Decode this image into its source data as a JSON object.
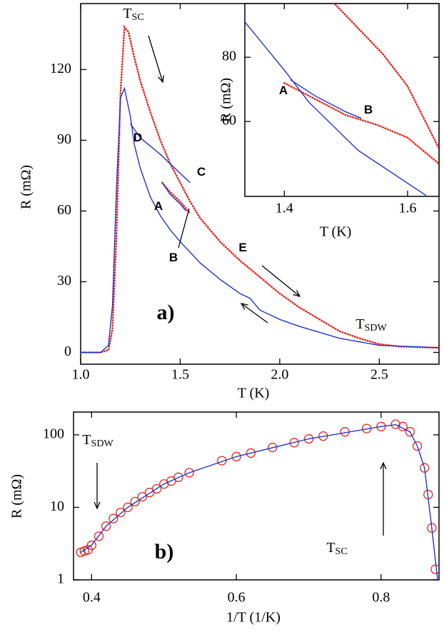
{
  "chart_data": [
    {
      "type": "line",
      "xlabel": "T (K)",
      "ylabel": "R (mΩ)",
      "xlim": [
        1.0,
        2.8
      ],
      "ylim": [
        -5,
        148
      ],
      "xticks": [
        {
          "value": 1.0,
          "label": "1.0"
        },
        1.5,
        {
          "value": 2.0,
          "label": "2.0"
        },
        2.5
      ],
      "yticks": [
        0,
        30,
        60,
        90,
        120
      ],
      "series": [
        {
          "color": "#e3241b",
          "style": "dots",
          "x": [
            1.0,
            1.1,
            1.14,
            1.16,
            1.18,
            1.2,
            1.22,
            1.24,
            1.27,
            1.3,
            1.35,
            1.4,
            1.45,
            1.5,
            1.55,
            1.6,
            1.7,
            1.8,
            1.9,
            2.0,
            2.1,
            2.2,
            2.3,
            2.4,
            2.5,
            2.6,
            2.7,
            2.8
          ],
          "values": [
            0,
            0,
            1,
            10,
            50,
            110,
            138,
            136,
            125,
            115,
            102,
            90,
            80,
            72,
            64,
            57,
            47,
            39,
            32,
            25,
            19,
            14,
            9,
            6,
            3.5,
            2.5,
            2.2,
            2
          ]
        },
        {
          "color": "#e3241b",
          "style": "dots",
          "x": [
            1.41,
            1.45,
            1.5,
            1.55
          ],
          "values": [
            72,
            68,
            64,
            59
          ]
        },
        {
          "color": "#2233cc",
          "style": "line",
          "x": [
            1.0,
            1.1,
            1.14,
            1.16,
            1.18,
            1.2,
            1.22,
            1.25,
            1.27,
            1.3,
            1.35,
            1.4,
            1.45,
            1.5,
            1.6,
            1.7,
            1.8,
            1.85,
            1.9,
            2.0,
            2.1,
            2.3,
            2.5,
            2.8
          ],
          "values": [
            0,
            0,
            3,
            20,
            70,
            108,
            112,
            100,
            88,
            78,
            66,
            58,
            52,
            47,
            38,
            31,
            25,
            23,
            18,
            14,
            11,
            6,
            3,
            2
          ]
        },
        {
          "color": "#2233cc",
          "style": "line",
          "x": [
            1.25,
            1.3,
            1.4,
            1.5,
            1.55
          ],
          "values": [
            97,
            91,
            84,
            76,
            72
          ]
        },
        {
          "color": "#2233cc",
          "style": "line",
          "x": [
            1.41,
            1.45,
            1.5,
            1.53
          ],
          "values": [
            72,
            67,
            63,
            60
          ]
        }
      ],
      "annotations": [
        {
          "text": "A"
        },
        {
          "text": "B"
        },
        {
          "text": "C"
        },
        {
          "text": "D"
        },
        {
          "text": "E"
        },
        {
          "text": "a)"
        },
        {
          "text": "T",
          "sub": "SC"
        },
        {
          "text": "T",
          "sub": "SDW"
        }
      ]
    },
    {
      "type": "line",
      "xlabel": "T (K)",
      "ylabel": "R (mΩ)",
      "xlim": [
        1.336,
        1.651
      ],
      "ylim": [
        36.7,
        96.7
      ],
      "xticks": [
        1.4,
        1.6
      ],
      "yticks": [
        60,
        80
      ],
      "series": [
        {
          "color": "#e3241b",
          "style": "dots",
          "x": [
            1.48,
            1.52,
            1.56,
            1.6,
            1.65
          ],
          "values": [
            97,
            89,
            81,
            71,
            52
          ]
        },
        {
          "color": "#e3241b",
          "style": "dots",
          "x": [
            1.4,
            1.45,
            1.5,
            1.55,
            1.6,
            1.65
          ],
          "values": [
            72,
            67,
            62,
            59,
            55,
            47
          ]
        },
        {
          "color": "#2233cc",
          "style": "line",
          "x": [
            1.336,
            1.4,
            1.44,
            1.52,
            1.63
          ],
          "values": [
            91,
            76,
            66,
            51,
            37
          ]
        },
        {
          "color": "#2233cc",
          "style": "line",
          "x": [
            1.41,
            1.45,
            1.5,
            1.525
          ],
          "values": [
            73,
            68,
            63,
            61
          ]
        }
      ],
      "annotations": [
        {
          "text": "A"
        },
        {
          "text": "B"
        }
      ]
    },
    {
      "type": "scatter",
      "xlabel": "1/T (1/K)",
      "ylabel": "R (mΩ)",
      "xlim": [
        0.375,
        0.88
      ],
      "ylim": [
        1,
        206
      ],
      "yscale": "log",
      "xticks": [
        0.4,
        0.6,
        0.8
      ],
      "yticks": [
        1,
        10,
        100
      ],
      "series": [
        {
          "color": "#e3241b",
          "style": "circles",
          "x": [
            0.385,
            0.39,
            0.395,
            0.4,
            0.41,
            0.42,
            0.43,
            0.44,
            0.45,
            0.46,
            0.47,
            0.48,
            0.49,
            0.5,
            0.51,
            0.52,
            0.535,
            0.58,
            0.6,
            0.62,
            0.65,
            0.68,
            0.7,
            0.72,
            0.75,
            0.78,
            0.8,
            0.82,
            0.83,
            0.84,
            0.85,
            0.86,
            0.865,
            0.87,
            0.875
          ],
          "values": [
            2.4,
            2.5,
            2.6,
            3,
            4,
            5.5,
            7,
            8.5,
            10,
            12,
            14,
            16,
            18,
            21,
            23,
            26,
            30,
            44,
            50,
            56,
            67,
            78,
            88,
            96,
            110,
            122,
            130,
            140,
            130,
            110,
            70,
            35,
            15,
            5.2,
            1.4
          ]
        },
        {
          "color": "#2233cc",
          "style": "line",
          "x": [
            0.385,
            0.4,
            0.42,
            0.45,
            0.5,
            0.535,
            0.6,
            0.7,
            0.8,
            0.82,
            0.84,
            0.85,
            0.86,
            0.87,
            0.878
          ],
          "values": [
            2.4,
            3,
            5.5,
            10,
            21,
            30,
            50,
            88,
            130,
            138,
            110,
            70,
            35,
            5.2,
            1
          ]
        }
      ],
      "annotations": [
        {
          "text": "T",
          "sub": "SDW"
        },
        {
          "text": "T",
          "sub": "SC"
        },
        {
          "text": "b)"
        }
      ]
    }
  ]
}
